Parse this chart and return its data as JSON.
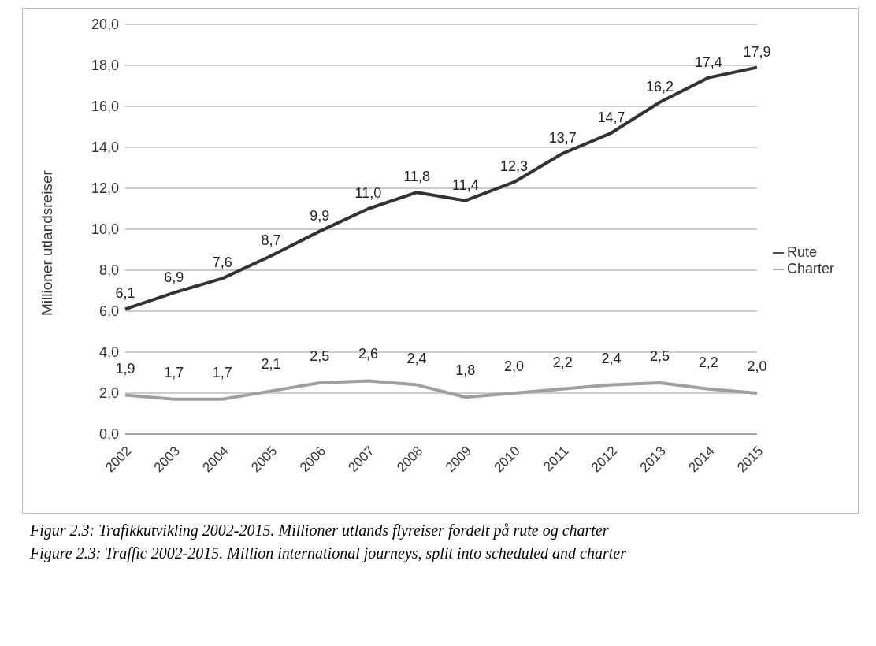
{
  "chart_data": {
    "type": "line",
    "ylabel": "Millioner utlandsreiser",
    "annotations": [
      "Figur 2.3: Trafikkutvikling 2002-2015. Millioner utlands flyreiser fordelt på rute og charter",
      "Figure 2.3: Traffic 2002-2015. Million international journeys, split into scheduled and charter"
    ],
    "categories": [
      "2002",
      "2003",
      "2004",
      "2005",
      "2006",
      "2007",
      "2008",
      "2009",
      "2010",
      "2011",
      "2012",
      "2013",
      "2014",
      "2015"
    ],
    "series": [
      {
        "name": "Rute",
        "color": "#333333",
        "values": [
          6.1,
          6.9,
          7.6,
          8.7,
          9.9,
          11.0,
          11.8,
          11.4,
          12.3,
          13.7,
          14.7,
          16.2,
          17.4,
          17.9
        ],
        "value_labels": [
          "6,1",
          "6,9",
          "7,6",
          "8,7",
          "9,9",
          "11,0",
          "11,8",
          "11,4",
          "12,3",
          "13,7",
          "14,7",
          "16,2",
          "17,4",
          "17,9"
        ]
      },
      {
        "name": "Charter",
        "color": "#a0a0a0",
        "values": [
          1.9,
          1.7,
          1.7,
          2.1,
          2.5,
          2.6,
          2.4,
          1.8,
          2.0,
          2.2,
          2.4,
          2.5,
          2.2,
          2.0
        ],
        "value_labels": [
          "1,9",
          "1,7",
          "1,7",
          "2,1",
          "2,5",
          "2,6",
          "2,4",
          "1,8",
          "2,0",
          "2,2",
          "2,4",
          "2,5",
          "2,2",
          "2,0"
        ]
      }
    ],
    "ylim": [
      0,
      20
    ],
    "yticks": [
      {
        "value": 0,
        "label": "0,0"
      },
      {
        "value": 2,
        "label": "2,0"
      },
      {
        "value": 4,
        "label": "4,0"
      },
      {
        "value": 6,
        "label": "6,0"
      },
      {
        "value": 8,
        "label": "8,0"
      },
      {
        "value": 10,
        "label": "10,0"
      },
      {
        "value": 12,
        "label": "12,0"
      },
      {
        "value": 14,
        "label": "14,0"
      },
      {
        "value": 16,
        "label": "16,0"
      },
      {
        "value": 18,
        "label": "18,0"
      },
      {
        "value": 20,
        "label": "20,0"
      }
    ],
    "grid": "y",
    "legend": "right",
    "marker": "none",
    "line_style": "solid"
  }
}
